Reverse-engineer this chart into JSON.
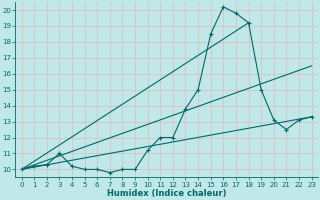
{
  "xlabel": "Humidex (Indice chaleur)",
  "xlim": [
    -0.5,
    23.5
  ],
  "ylim": [
    9.5,
    20.5
  ],
  "xticks": [
    0,
    1,
    2,
    3,
    4,
    5,
    6,
    7,
    8,
    9,
    10,
    11,
    12,
    13,
    14,
    15,
    16,
    17,
    18,
    19,
    20,
    21,
    22,
    23
  ],
  "yticks": [
    10,
    11,
    12,
    13,
    14,
    15,
    16,
    17,
    18,
    19,
    20
  ],
  "bg_color": "#c0e8e8",
  "grid_color": "#e0b8b8",
  "line_color": "#006868",
  "main_x": [
    0,
    1,
    2,
    3,
    4,
    5,
    6,
    7,
    8,
    9,
    10,
    11,
    12,
    13,
    14,
    15,
    16,
    17,
    18,
    19,
    20,
    21,
    22,
    23
  ],
  "main_y": [
    10.0,
    10.2,
    10.3,
    11.0,
    10.2,
    10.0,
    10.0,
    9.8,
    10.0,
    10.0,
    11.2,
    12.0,
    12.0,
    13.8,
    15.0,
    18.5,
    20.2,
    19.8,
    19.2,
    15.0,
    13.1,
    12.5,
    13.1,
    13.3
  ],
  "straight_lines": [
    {
      "x": [
        0,
        18
      ],
      "y": [
        10.0,
        19.2
      ]
    },
    {
      "x": [
        0,
        23
      ],
      "y": [
        10.0,
        16.5
      ]
    },
    {
      "x": [
        0,
        23
      ],
      "y": [
        10.0,
        13.3
      ]
    }
  ]
}
